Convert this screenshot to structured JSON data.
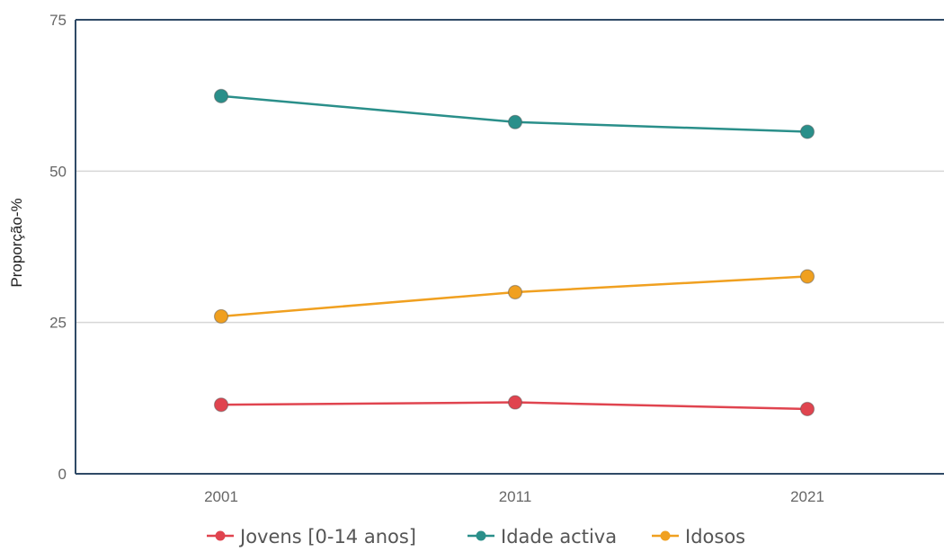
{
  "chart_data": {
    "type": "line",
    "categories": [
      "2001",
      "2011",
      "2021"
    ],
    "series": [
      {
        "name": "Jovens [0-14 anos]",
        "values": [
          11.4,
          11.8,
          10.7
        ],
        "color": "#e0444f"
      },
      {
        "name": "Idade activa",
        "values": [
          62.4,
          58.1,
          56.5
        ],
        "color": "#2a8f8a"
      },
      {
        "name": "Idosos",
        "values": [
          26.0,
          30.0,
          32.6
        ],
        "color": "#f0a020"
      }
    ],
    "ylabel": "Proporção-%",
    "ylim": [
      0,
      75
    ],
    "yticks": [
      "0",
      "25",
      "50",
      "75"
    ],
    "grid": true,
    "legend": "bottom"
  }
}
